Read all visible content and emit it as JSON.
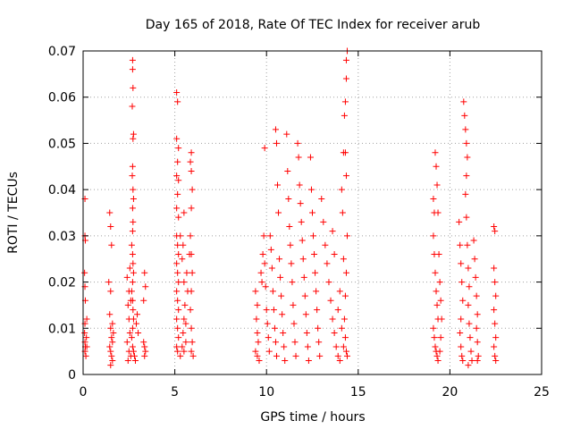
{
  "chart_data": {
    "type": "scatter",
    "title": "Day 165 of 2018, Rate Of TEC Index for receiver arub",
    "xlabel": "GPS time / hours",
    "ylabel": "ROTI / TECUs",
    "xlim": [
      0,
      25
    ],
    "ylim": [
      0,
      0.07
    ],
    "x_ticks": [
      0,
      5,
      10,
      15,
      20,
      25
    ],
    "x_tick_labels": [
      "0",
      "5",
      "10",
      "15",
      "20",
      "25"
    ],
    "y_ticks": [
      0,
      0.01,
      0.02,
      0.03,
      0.04,
      0.05,
      0.06,
      0.07
    ],
    "y_tick_labels": [
      "0",
      "0.01",
      "0.02",
      "0.03",
      "0.04",
      "0.05",
      "0.06",
      "0.07"
    ],
    "grid": true,
    "marker": "+",
    "color": "#ff0000",
    "series": [
      {
        "name": "ROTI",
        "points": [
          [
            0.1,
            0.038
          ],
          [
            0.1,
            0.03
          ],
          [
            0.12,
            0.029
          ],
          [
            0.08,
            0.022
          ],
          [
            0.1,
            0.019
          ],
          [
            0.12,
            0.016
          ],
          [
            0.1,
            0.011
          ],
          [
            0.08,
            0.009
          ],
          [
            0.1,
            0.007
          ],
          [
            0.12,
            0.006
          ],
          [
            0.1,
            0.005
          ],
          [
            0.15,
            0.004
          ],
          [
            0.2,
            0.012
          ],
          [
            0.18,
            0.008
          ],
          [
            0.2,
            0.006
          ],
          [
            1.45,
            0.035
          ],
          [
            1.5,
            0.032
          ],
          [
            1.55,
            0.028
          ],
          [
            1.4,
            0.02
          ],
          [
            1.5,
            0.018
          ],
          [
            1.45,
            0.013
          ],
          [
            1.5,
            0.01
          ],
          [
            1.55,
            0.008
          ],
          [
            1.6,
            0.007
          ],
          [
            1.45,
            0.006
          ],
          [
            1.5,
            0.005
          ],
          [
            1.55,
            0.004
          ],
          [
            1.6,
            0.003
          ],
          [
            1.5,
            0.002
          ],
          [
            1.65,
            0.009
          ],
          [
            1.6,
            0.011
          ],
          [
            2.4,
            0.021
          ],
          [
            2.5,
            0.018
          ],
          [
            2.45,
            0.015
          ],
          [
            2.5,
            0.012
          ],
          [
            2.55,
            0.009
          ],
          [
            2.4,
            0.007
          ],
          [
            2.5,
            0.005
          ],
          [
            2.6,
            0.004
          ],
          [
            2.45,
            0.003
          ],
          [
            2.7,
            0.068
          ],
          [
            2.7,
            0.066
          ],
          [
            2.72,
            0.062
          ],
          [
            2.68,
            0.058
          ],
          [
            2.75,
            0.052
          ],
          [
            2.72,
            0.051
          ],
          [
            2.7,
            0.045
          ],
          [
            2.68,
            0.043
          ],
          [
            2.72,
            0.04
          ],
          [
            2.75,
            0.038
          ],
          [
            2.7,
            0.036
          ],
          [
            2.72,
            0.033
          ],
          [
            2.7,
            0.031
          ],
          [
            2.65,
            0.028
          ],
          [
            2.7,
            0.026
          ],
          [
            2.72,
            0.024
          ],
          [
            2.75,
            0.022
          ],
          [
            2.7,
            0.02
          ],
          [
            2.65,
            0.018
          ],
          [
            2.7,
            0.016
          ],
          [
            2.72,
            0.014
          ],
          [
            2.75,
            0.012
          ],
          [
            2.7,
            0.01
          ],
          [
            2.65,
            0.008
          ],
          [
            2.7,
            0.006
          ],
          [
            2.75,
            0.005
          ],
          [
            2.8,
            0.004
          ],
          [
            2.85,
            0.003
          ],
          [
            2.9,
            0.011
          ],
          [
            2.95,
            0.013
          ],
          [
            3.0,
            0.009
          ],
          [
            2.6,
            0.016
          ],
          [
            2.55,
            0.023
          ],
          [
            3.3,
            0.007
          ],
          [
            3.35,
            0.006
          ],
          [
            3.4,
            0.005
          ],
          [
            3.35,
            0.004
          ],
          [
            3.3,
            0.016
          ],
          [
            3.4,
            0.019
          ],
          [
            3.35,
            0.022
          ],
          [
            5.1,
            0.061
          ],
          [
            5.15,
            0.059
          ],
          [
            5.1,
            0.051
          ],
          [
            5.2,
            0.049
          ],
          [
            5.15,
            0.046
          ],
          [
            5.1,
            0.043
          ],
          [
            5.2,
            0.042
          ],
          [
            5.15,
            0.039
          ],
          [
            5.1,
            0.036
          ],
          [
            5.2,
            0.034
          ],
          [
            5.1,
            0.03
          ],
          [
            5.15,
            0.028
          ],
          [
            5.2,
            0.026
          ],
          [
            5.1,
            0.024
          ],
          [
            5.15,
            0.022
          ],
          [
            5.2,
            0.02
          ],
          [
            5.1,
            0.018
          ],
          [
            5.15,
            0.016
          ],
          [
            5.2,
            0.014
          ],
          [
            5.1,
            0.012
          ],
          [
            5.15,
            0.01
          ],
          [
            5.2,
            0.008
          ],
          [
            5.1,
            0.006
          ],
          [
            5.15,
            0.005
          ],
          [
            5.3,
            0.03
          ],
          [
            5.4,
            0.025
          ],
          [
            5.5,
            0.035
          ],
          [
            5.45,
            0.028
          ],
          [
            5.5,
            0.02
          ],
          [
            5.55,
            0.015
          ],
          [
            5.5,
            0.012
          ],
          [
            5.45,
            0.009
          ],
          [
            5.6,
            0.007
          ],
          [
            5.5,
            0.005
          ],
          [
            5.7,
            0.018
          ],
          [
            5.65,
            0.022
          ],
          [
            5.8,
            0.026
          ],
          [
            5.9,
            0.048
          ],
          [
            5.85,
            0.046
          ],
          [
            5.9,
            0.044
          ],
          [
            5.95,
            0.04
          ],
          [
            5.9,
            0.036
          ],
          [
            5.85,
            0.03
          ],
          [
            5.9,
            0.026
          ],
          [
            5.95,
            0.022
          ],
          [
            5.9,
            0.018
          ],
          [
            5.85,
            0.014
          ],
          [
            5.9,
            0.01
          ],
          [
            5.95,
            0.007
          ],
          [
            5.9,
            0.005
          ],
          [
            6.0,
            0.004
          ],
          [
            5.3,
            0.004
          ],
          [
            5.4,
            0.006
          ],
          [
            5.6,
            0.011
          ],
          [
            9.4,
            0.018
          ],
          [
            9.5,
            0.015
          ],
          [
            9.45,
            0.012
          ],
          [
            9.5,
            0.009
          ],
          [
            9.55,
            0.007
          ],
          [
            9.4,
            0.005
          ],
          [
            9.5,
            0.004
          ],
          [
            9.6,
            0.003
          ],
          [
            9.7,
            0.022
          ],
          [
            9.8,
            0.026
          ],
          [
            9.75,
            0.02
          ],
          [
            9.9,
            0.049
          ],
          [
            9.85,
            0.03
          ],
          [
            9.9,
            0.024
          ],
          [
            9.95,
            0.019
          ],
          [
            10.0,
            0.014
          ],
          [
            10.05,
            0.011
          ],
          [
            10.1,
            0.008
          ],
          [
            10.15,
            0.005
          ],
          [
            10.2,
            0.03
          ],
          [
            10.25,
            0.027
          ],
          [
            10.3,
            0.023
          ],
          [
            10.35,
            0.018
          ],
          [
            10.4,
            0.014
          ],
          [
            10.45,
            0.01
          ],
          [
            10.5,
            0.007
          ],
          [
            10.55,
            0.004
          ],
          [
            10.5,
            0.053
          ],
          [
            10.55,
            0.05
          ],
          [
            10.6,
            0.041
          ],
          [
            10.65,
            0.035
          ],
          [
            10.7,
            0.025
          ],
          [
            10.75,
            0.021
          ],
          [
            10.8,
            0.017
          ],
          [
            10.85,
            0.013
          ],
          [
            10.9,
            0.009
          ],
          [
            10.95,
            0.006
          ],
          [
            11.0,
            0.003
          ],
          [
            11.1,
            0.052
          ],
          [
            11.15,
            0.044
          ],
          [
            11.2,
            0.038
          ],
          [
            11.25,
            0.032
          ],
          [
            11.3,
            0.028
          ],
          [
            11.35,
            0.024
          ],
          [
            11.4,
            0.02
          ],
          [
            11.45,
            0.015
          ],
          [
            11.5,
            0.011
          ],
          [
            11.55,
            0.007
          ],
          [
            11.6,
            0.004
          ],
          [
            11.7,
            0.05
          ],
          [
            11.75,
            0.047
          ],
          [
            11.8,
            0.041
          ],
          [
            11.85,
            0.037
          ],
          [
            11.9,
            0.033
          ],
          [
            11.95,
            0.029
          ],
          [
            12.0,
            0.025
          ],
          [
            12.05,
            0.021
          ],
          [
            12.1,
            0.017
          ],
          [
            12.15,
            0.013
          ],
          [
            12.2,
            0.009
          ],
          [
            12.25,
            0.006
          ],
          [
            12.3,
            0.003
          ],
          [
            12.4,
            0.047
          ],
          [
            12.45,
            0.04
          ],
          [
            12.5,
            0.035
          ],
          [
            12.55,
            0.03
          ],
          [
            12.6,
            0.026
          ],
          [
            12.65,
            0.022
          ],
          [
            12.7,
            0.018
          ],
          [
            12.75,
            0.014
          ],
          [
            12.8,
            0.01
          ],
          [
            12.85,
            0.007
          ],
          [
            12.9,
            0.004
          ],
          [
            13.0,
            0.038
          ],
          [
            13.1,
            0.033
          ],
          [
            13.2,
            0.028
          ],
          [
            13.3,
            0.024
          ],
          [
            13.4,
            0.02
          ],
          [
            13.5,
            0.016
          ],
          [
            13.6,
            0.012
          ],
          [
            13.7,
            0.009
          ],
          [
            13.8,
            0.006
          ],
          [
            13.9,
            0.004
          ],
          [
            14.0,
            0.003
          ],
          [
            14.1,
            0.04
          ],
          [
            14.2,
            0.048
          ],
          [
            14.25,
            0.056
          ],
          [
            14.3,
            0.059
          ],
          [
            14.35,
            0.064
          ],
          [
            14.35,
            0.068
          ],
          [
            14.4,
            0.07
          ],
          [
            14.3,
            0.048
          ],
          [
            14.35,
            0.043
          ],
          [
            14.4,
            0.03
          ],
          [
            14.35,
            0.022
          ],
          [
            14.3,
            0.017
          ],
          [
            14.25,
            0.012
          ],
          [
            14.3,
            0.008
          ],
          [
            14.35,
            0.005
          ],
          [
            14.4,
            0.004
          ],
          [
            13.6,
            0.031
          ],
          [
            13.7,
            0.026
          ],
          [
            14.15,
            0.035
          ],
          [
            14.2,
            0.025
          ],
          [
            14.0,
            0.018
          ],
          [
            13.9,
            0.014
          ],
          [
            14.1,
            0.01
          ],
          [
            14.2,
            0.006
          ],
          [
            19.1,
            0.038
          ],
          [
            19.15,
            0.035
          ],
          [
            19.2,
            0.048
          ],
          [
            19.25,
            0.045
          ],
          [
            19.3,
            0.041
          ],
          [
            19.35,
            0.035
          ],
          [
            19.1,
            0.03
          ],
          [
            19.15,
            0.026
          ],
          [
            19.2,
            0.022
          ],
          [
            19.25,
            0.018
          ],
          [
            19.3,
            0.015
          ],
          [
            19.35,
            0.012
          ],
          [
            19.1,
            0.01
          ],
          [
            19.15,
            0.008
          ],
          [
            19.2,
            0.006
          ],
          [
            19.25,
            0.005
          ],
          [
            19.3,
            0.004
          ],
          [
            19.35,
            0.003
          ],
          [
            19.4,
            0.026
          ],
          [
            19.45,
            0.02
          ],
          [
            19.5,
            0.016
          ],
          [
            19.55,
            0.012
          ],
          [
            19.5,
            0.008
          ],
          [
            19.45,
            0.005
          ],
          [
            20.5,
            0.033
          ],
          [
            20.55,
            0.028
          ],
          [
            20.6,
            0.024
          ],
          [
            20.65,
            0.02
          ],
          [
            20.7,
            0.016
          ],
          [
            20.6,
            0.012
          ],
          [
            20.55,
            0.009
          ],
          [
            20.6,
            0.006
          ],
          [
            20.65,
            0.004
          ],
          [
            20.7,
            0.003
          ],
          [
            20.75,
            0.059
          ],
          [
            20.8,
            0.056
          ],
          [
            20.85,
            0.053
          ],
          [
            20.9,
            0.05
          ],
          [
            20.95,
            0.047
          ],
          [
            20.9,
            0.043
          ],
          [
            20.85,
            0.039
          ],
          [
            20.9,
            0.034
          ],
          [
            20.95,
            0.028
          ],
          [
            21.0,
            0.023
          ],
          [
            21.05,
            0.019
          ],
          [
            21.0,
            0.015
          ],
          [
            21.05,
            0.011
          ],
          [
            21.1,
            0.008
          ],
          [
            21.15,
            0.005
          ],
          [
            21.2,
            0.003
          ],
          [
            21.0,
            0.002
          ],
          [
            21.3,
            0.029
          ],
          [
            21.35,
            0.025
          ],
          [
            21.4,
            0.021
          ],
          [
            21.45,
            0.017
          ],
          [
            21.5,
            0.013
          ],
          [
            21.45,
            0.01
          ],
          [
            21.5,
            0.007
          ],
          [
            21.55,
            0.004
          ],
          [
            21.5,
            0.003
          ],
          [
            22.4,
            0.032
          ],
          [
            22.45,
            0.031
          ],
          [
            22.4,
            0.023
          ],
          [
            22.45,
            0.02
          ],
          [
            22.5,
            0.017
          ],
          [
            22.4,
            0.014
          ],
          [
            22.45,
            0.011
          ],
          [
            22.5,
            0.008
          ],
          [
            22.4,
            0.006
          ],
          [
            22.45,
            0.004
          ],
          [
            22.5,
            0.003
          ]
        ]
      }
    ]
  }
}
